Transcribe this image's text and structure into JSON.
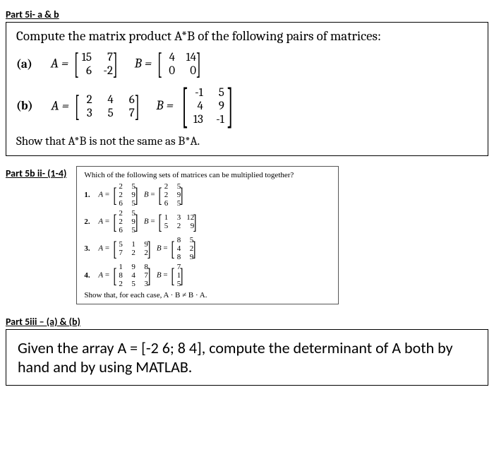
{
  "part5i": {
    "heading": "Part 5i- a & b",
    "prompt": "Compute the matrix product A*B of the following pairs of matrices:",
    "items": [
      {
        "label": "(a)",
        "A_prefix": "A =",
        "A": [
          [
            15,
            7
          ],
          [
            6,
            -2
          ]
        ],
        "B_prefix": "B =",
        "B": [
          [
            4,
            14
          ],
          [
            0,
            0
          ]
        ]
      },
      {
        "label": "(b)",
        "A_prefix": "A =",
        "A": [
          [
            2,
            4,
            6
          ],
          [
            3,
            5,
            7
          ]
        ],
        "B_prefix": "B =",
        "B": [
          [
            -1,
            5
          ],
          [
            4,
            9
          ],
          [
            13,
            -1
          ]
        ]
      }
    ],
    "show": "Show that A*B is not the same as B*A."
  },
  "part5bii": {
    "heading": "Part 5b ii- (1-4)",
    "inner_title": "Which of the following sets of matrices can be multiplied together?",
    "items": [
      {
        "num": "1.",
        "A": [
          [
            2,
            5
          ],
          [
            2,
            9
          ],
          [
            6,
            5
          ]
        ],
        "B": [
          [
            2,
            5
          ],
          [
            2,
            9
          ],
          [
            6,
            5
          ]
        ]
      },
      {
        "num": "2.",
        "A": [
          [
            2,
            5
          ],
          [
            2,
            9
          ],
          [
            6,
            5
          ]
        ],
        "B": [
          [
            1,
            3,
            12
          ],
          [
            5,
            2,
            9
          ]
        ]
      },
      {
        "num": "3.",
        "A": [
          [
            5,
            1,
            9
          ],
          [
            7,
            2,
            2
          ]
        ],
        "B": [
          [
            8,
            5
          ],
          [
            4,
            2
          ],
          [
            8,
            9
          ]
        ]
      },
      {
        "num": "4.",
        "A": [
          [
            1,
            9,
            8
          ],
          [
            8,
            4,
            7
          ],
          [
            2,
            5,
            3
          ]
        ],
        "B": [
          [
            7
          ],
          [
            1
          ],
          [
            5
          ]
        ]
      }
    ],
    "inner_footer": "Show that, for each case, A · B ≠ B · A."
  },
  "part5iii": {
    "heading": "Part 5iii – (a) & (b)",
    "text": "Given the array A = [-2  6; 8  4], compute the determinant of A both by hand and by using MATLAB."
  }
}
